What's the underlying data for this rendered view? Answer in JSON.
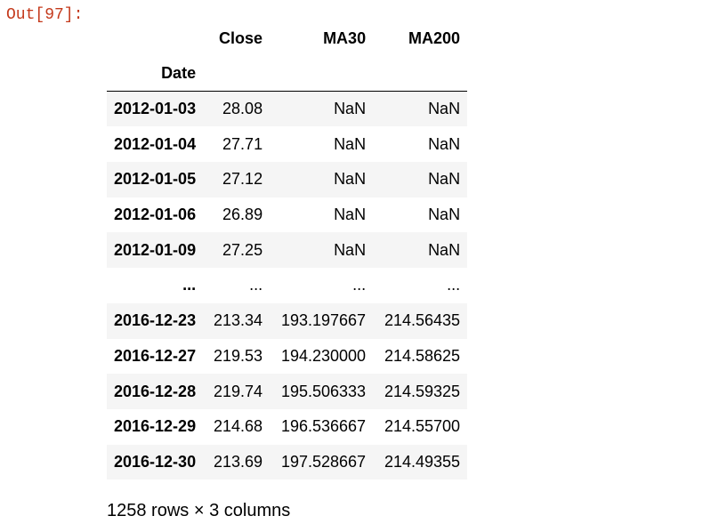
{
  "prompt": {
    "label": "Out[97]:"
  },
  "dataframe": {
    "columns": [
      "Close",
      "MA30",
      "MA200"
    ],
    "index_name": "Date",
    "rows": [
      {
        "date": "2012-01-03",
        "close": "28.08",
        "ma30": "NaN",
        "ma200": "NaN"
      },
      {
        "date": "2012-01-04",
        "close": "27.71",
        "ma30": "NaN",
        "ma200": "NaN"
      },
      {
        "date": "2012-01-05",
        "close": "27.12",
        "ma30": "NaN",
        "ma200": "NaN"
      },
      {
        "date": "2012-01-06",
        "close": "26.89",
        "ma30": "NaN",
        "ma200": "NaN"
      },
      {
        "date": "2012-01-09",
        "close": "27.25",
        "ma30": "NaN",
        "ma200": "NaN"
      },
      {
        "date": "...",
        "close": "...",
        "ma30": "...",
        "ma200": "..."
      },
      {
        "date": "2016-12-23",
        "close": "213.34",
        "ma30": "193.197667",
        "ma200": "214.56435"
      },
      {
        "date": "2016-12-27",
        "close": "219.53",
        "ma30": "194.230000",
        "ma200": "214.58625"
      },
      {
        "date": "2016-12-28",
        "close": "219.74",
        "ma30": "195.506333",
        "ma200": "214.59325"
      },
      {
        "date": "2016-12-29",
        "close": "214.68",
        "ma30": "196.536667",
        "ma200": "214.55700"
      },
      {
        "date": "2016-12-30",
        "close": "213.69",
        "ma30": "197.528667",
        "ma200": "214.49355"
      }
    ],
    "shape_text": "1258 rows × 3 columns"
  }
}
